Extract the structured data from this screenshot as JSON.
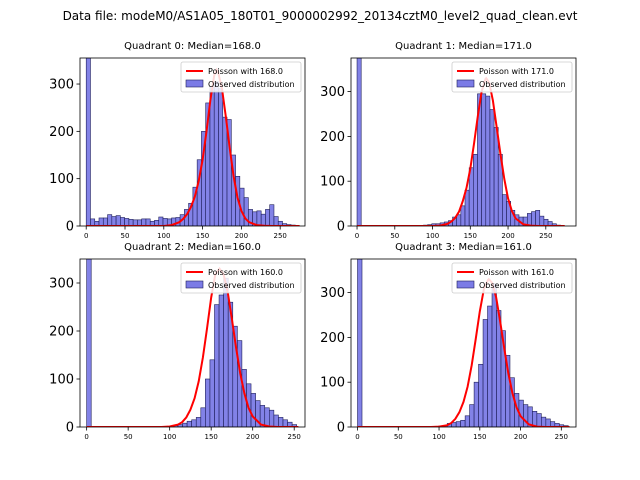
{
  "figure": {
    "title": "Data file: modeM0/AS1A05_180T01_9000002992_20134cztM0_level2_quad_clean.evt"
  },
  "colors": {
    "bar_fill": "#7b7be6",
    "bar_edge": "#1f1f5a",
    "poisson_line": "#ff0000",
    "axis": "#000000"
  },
  "chart_data": [
    {
      "type": "bar",
      "title": "Quadrant 0: Median=168.0",
      "median": 168.0,
      "legend": [
        "Poisson with 168.0",
        "Observed distribution"
      ],
      "legend_loc": "upper right",
      "xlim": [
        -8,
        282
      ],
      "ylim": [
        0,
        355
      ],
      "xticks": [
        0,
        50,
        100,
        150,
        200,
        250
      ],
      "yticks": [
        0,
        100,
        200,
        300
      ],
      "bin_width": 5.5,
      "x": [
        0,
        5.5,
        11,
        16.5,
        22,
        27.5,
        33,
        38.5,
        44,
        49.5,
        55,
        60.5,
        66,
        71.5,
        77,
        82.5,
        88,
        93.5,
        99,
        104.5,
        110,
        115.5,
        121,
        126.5,
        132,
        137.5,
        143,
        148.5,
        154,
        159.5,
        165,
        170.5,
        176,
        181.5,
        187,
        192.5,
        198,
        203.5,
        209,
        214.5,
        220,
        225.5,
        231,
        236.5,
        242,
        247.5,
        253,
        258.5,
        264,
        269.5
      ],
      "values": [
        360,
        15,
        10,
        17,
        17,
        24,
        20,
        22,
        18,
        16,
        14,
        13,
        13,
        15,
        15,
        10,
        12,
        19,
        16,
        15,
        17,
        18,
        24,
        35,
        48,
        82,
        140,
        200,
        260,
        295,
        305,
        290,
        230,
        225,
        150,
        105,
        80,
        60,
        35,
        30,
        32,
        25,
        35,
        45,
        20,
        10,
        5,
        3,
        2,
        0
      ],
      "poisson_curve": {
        "x": [
          0,
          60,
          100,
          110,
          120,
          125,
          130,
          135,
          140,
          145,
          150,
          155,
          160,
          165,
          168,
          170,
          175,
          180,
          185,
          190,
          195,
          200,
          205,
          210,
          220,
          230,
          240,
          250,
          260,
          275
        ],
        "y": [
          0,
          0,
          0,
          2,
          8,
          15,
          25,
          40,
          62,
          95,
          140,
          200,
          265,
          318,
          330,
          325,
          290,
          230,
          165,
          105,
          60,
          32,
          16,
          8,
          2,
          0.5,
          0,
          0,
          0,
          0
        ]
      }
    },
    {
      "type": "bar",
      "title": "Quadrant 1: Median=171.0",
      "median": 171.0,
      "legend": [
        "Poisson with 171.0",
        "Observed distribution"
      ],
      "legend_loc": "upper right",
      "xlim": [
        -8,
        290
      ],
      "ylim": [
        0,
        375
      ],
      "xticks": [
        0,
        50,
        100,
        150,
        200,
        250
      ],
      "yticks": [
        0,
        100,
        200,
        300
      ],
      "bin_width": 5.5,
      "x": [
        0,
        5.5,
        11,
        16.5,
        22,
        27.5,
        33,
        38.5,
        44,
        49.5,
        55,
        60.5,
        66,
        71.5,
        77,
        82.5,
        88,
        93.5,
        99,
        104.5,
        110,
        115.5,
        121,
        126.5,
        132,
        137.5,
        143,
        148.5,
        154,
        159.5,
        165,
        170.5,
        176,
        181.5,
        187,
        192.5,
        198,
        203.5,
        209,
        214.5,
        220,
        225.5,
        231,
        236.5,
        242,
        247.5,
        253,
        258.5,
        264,
        269.5,
        275
      ],
      "values": [
        380,
        0,
        0,
        0,
        0,
        0,
        0,
        0,
        0,
        0,
        0,
        0,
        0,
        0,
        0,
        0,
        2,
        3,
        5,
        5,
        7,
        9,
        12,
        20,
        25,
        45,
        80,
        130,
        160,
        295,
        295,
        290,
        260,
        220,
        160,
        70,
        55,
        35,
        25,
        20,
        20,
        28,
        32,
        35,
        22,
        15,
        10,
        5,
        2,
        0,
        0
      ],
      "poisson_curve": {
        "x": [
          0,
          60,
          100,
          110,
          120,
          125,
          130,
          135,
          140,
          145,
          150,
          155,
          160,
          165,
          170,
          171,
          175,
          180,
          185,
          190,
          195,
          200,
          205,
          210,
          220,
          230,
          240,
          250,
          260,
          275
        ],
        "y": [
          0,
          0,
          0,
          1,
          5,
          10,
          18,
          32,
          55,
          85,
          128,
          185,
          245,
          300,
          328,
          330,
          320,
          280,
          220,
          160,
          105,
          62,
          34,
          17,
          4,
          1,
          0,
          0,
          0,
          0
        ]
      }
    },
    {
      "type": "bar",
      "title": "Quadrant 2: Median=160.0",
      "median": 160.0,
      "legend": [
        "Poisson with 160.0",
        "Observed distribution"
      ],
      "legend_loc": "upper right",
      "xlim": [
        -8,
        263
      ],
      "ylim": [
        0,
        350
      ],
      "xticks": [
        0,
        50,
        100,
        150,
        200,
        250
      ],
      "yticks": [
        0,
        100,
        200,
        300
      ],
      "bin_width": 5.5,
      "x": [
        0,
        5.5,
        11,
        16.5,
        22,
        27.5,
        33,
        38.5,
        44,
        49.5,
        55,
        60.5,
        66,
        71.5,
        77,
        82.5,
        88,
        93.5,
        99,
        104.5,
        110,
        115.5,
        121,
        126.5,
        132,
        137.5,
        143,
        148.5,
        154,
        159.5,
        165,
        170.5,
        176,
        181.5,
        187,
        192.5,
        198,
        203.5,
        209,
        214.5,
        220,
        225.5,
        231,
        236.5,
        242,
        247.5
      ],
      "values": [
        360,
        0,
        0,
        0,
        0,
        0,
        0,
        0,
        0,
        0,
        0,
        0,
        0,
        0,
        0,
        0,
        0,
        0,
        0,
        3,
        5,
        8,
        12,
        15,
        20,
        40,
        100,
        140,
        255,
        275,
        310,
        260,
        210,
        180,
        120,
        90,
        70,
        55,
        45,
        40,
        35,
        25,
        20,
        15,
        10,
        5
      ],
      "poisson_curve": {
        "x": [
          0,
          60,
          90,
          100,
          110,
          115,
          120,
          125,
          130,
          135,
          140,
          145,
          150,
          155,
          160,
          165,
          170,
          175,
          180,
          185,
          190,
          195,
          200,
          210,
          220,
          230,
          240,
          255
        ],
        "y": [
          0,
          0,
          0,
          1,
          5,
          10,
          20,
          36,
          60,
          95,
          145,
          205,
          270,
          318,
          330,
          318,
          280,
          225,
          165,
          112,
          70,
          40,
          22,
          5,
          1,
          0,
          0,
          0
        ]
      }
    },
    {
      "type": "bar",
      "title": "Quadrant 3: Median=161.0",
      "median": 161.0,
      "legend": [
        "Poisson with 161.0",
        "Observed distribution"
      ],
      "legend_loc": "upper right",
      "xlim": [
        -8,
        268
      ],
      "ylim": [
        0,
        375
      ],
      "xticks": [
        0,
        50,
        100,
        150,
        200,
        250
      ],
      "yticks": [
        0,
        100,
        200,
        300
      ],
      "bin_width": 5.5,
      "x": [
        0,
        5.5,
        11,
        16.5,
        22,
        27.5,
        33,
        38.5,
        44,
        49.5,
        55,
        60.5,
        66,
        71.5,
        77,
        82.5,
        88,
        93.5,
        99,
        104.5,
        110,
        115.5,
        121,
        126.5,
        132,
        137.5,
        143,
        148.5,
        154,
        159.5,
        165,
        170.5,
        176,
        181.5,
        187,
        192.5,
        198,
        203.5,
        209,
        214.5,
        220,
        225.5,
        231,
        236.5,
        242,
        247.5,
        253
      ],
      "values": [
        380,
        0,
        0,
        0,
        0,
        0,
        0,
        0,
        0,
        0,
        0,
        0,
        0,
        0,
        0,
        0,
        0,
        1,
        2,
        3,
        8,
        10,
        12,
        15,
        25,
        50,
        100,
        140,
        240,
        270,
        320,
        260,
        215,
        160,
        110,
        75,
        60,
        50,
        45,
        35,
        30,
        22,
        18,
        12,
        8,
        5,
        3
      ],
      "poisson_curve": {
        "x": [
          0,
          60,
          90,
          100,
          110,
          115,
          120,
          125,
          130,
          135,
          140,
          145,
          150,
          155,
          160,
          161,
          165,
          170,
          175,
          180,
          185,
          190,
          195,
          200,
          210,
          220,
          230,
          240,
          260
        ],
        "y": [
          0,
          0,
          0,
          1,
          4,
          9,
          18,
          33,
          56,
          90,
          138,
          196,
          258,
          308,
          328,
          330,
          322,
          290,
          235,
          175,
          120,
          76,
          44,
          24,
          6,
          1,
          0,
          0,
          0
        ]
      }
    }
  ]
}
